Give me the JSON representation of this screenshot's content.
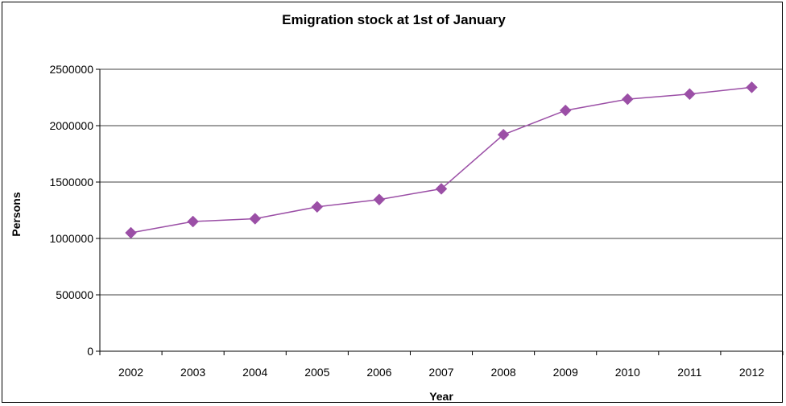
{
  "chart_data": {
    "type": "line",
    "title": "Emigration stock at 1st of January",
    "xlabel": "Year",
    "ylabel": "Persons",
    "categories": [
      "2002",
      "2003",
      "2004",
      "2005",
      "2006",
      "2007",
      "2008",
      "2009",
      "2010",
      "2011",
      "2012"
    ],
    "series": [
      {
        "values": [
          1050000,
          1150000,
          1175000,
          1280000,
          1345000,
          1440000,
          1920000,
          2135000,
          2235000,
          2280000,
          2340000
        ],
        "color": "#9b4fa6",
        "marker": "diamond"
      }
    ],
    "ylim": [
      0,
      2500000
    ],
    "yticks": [
      0,
      500000,
      1000000,
      1500000,
      2000000,
      2500000
    ],
    "ytick_labels": [
      "0",
      "500000",
      "1000000",
      "1500000",
      "2000000",
      "2500000"
    ],
    "grid": true,
    "legend": "none"
  }
}
